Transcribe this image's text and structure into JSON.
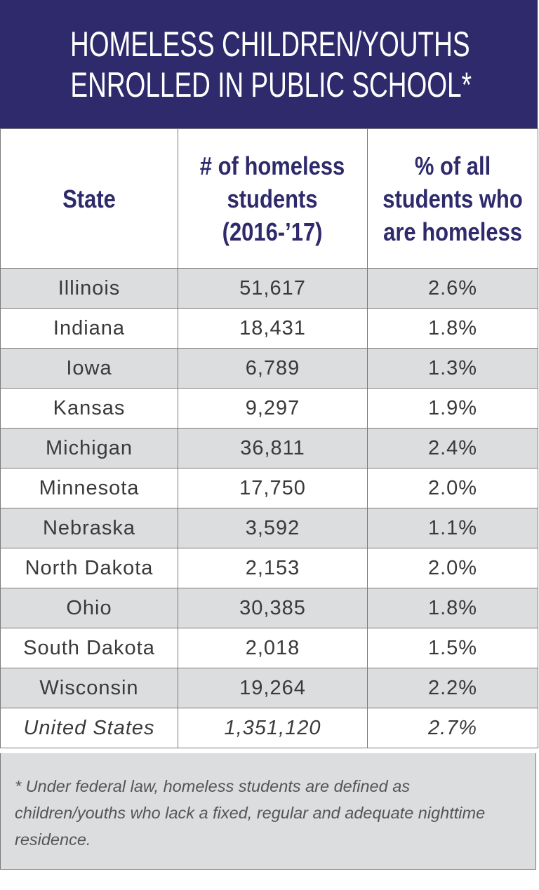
{
  "header": {
    "title": [
      "HOMELESS CHILDREN/YOUTHS",
      "ENROLLED IN PUBLIC SCHOOL*"
    ]
  },
  "table": {
    "columns": [
      [
        "State"
      ],
      [
        "# of homeless",
        "students",
        "(2016-’17)"
      ],
      [
        "% of all",
        "students who",
        "are homeless"
      ]
    ],
    "rows": [
      [
        "Illinois",
        "51,617",
        "2.6%"
      ],
      [
        "Indiana",
        "18,431",
        "1.8%"
      ],
      [
        "Iowa",
        "6,789",
        "1.3%"
      ],
      [
        "Kansas",
        "9,297",
        "1.9%"
      ],
      [
        "Michigan",
        "36,811",
        "2.4%"
      ],
      [
        "Minnesota",
        "17,750",
        "2.0%"
      ],
      [
        "Nebraska",
        "3,592",
        "1.1%"
      ],
      [
        "North Dakota",
        "2,153",
        "2.0%"
      ],
      [
        "Ohio",
        "30,385",
        "1.8%"
      ],
      [
        "South Dakota",
        "2,018",
        "1.5%"
      ],
      [
        "Wisconsin",
        "19,264",
        "2.2%"
      ],
      [
        "United States",
        "1,351,120",
        "2.7%"
      ]
    ]
  },
  "footnote": "* Under federal law, homeless students are defined as children/youths who lack a fixed, regular and adequate nighttime residence."
}
